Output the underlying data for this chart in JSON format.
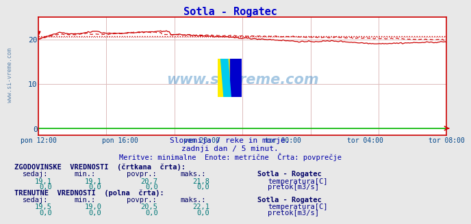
{
  "title": "Sotla - Rogatec",
  "subtitle1": "Slovenija / reke in morje.",
  "subtitle2": "zadnji dan / 5 minut.",
  "subtitle3": "Meritve: minimalne  Enote: metrične  Črta: povprečje",
  "watermark": "www.si-vreme.com",
  "x_labels": [
    "pon 12:00",
    "pon 16:00",
    "pon 20:00",
    "tor 00:00",
    "tor 04:00",
    "tor 08:00"
  ],
  "ylim": [
    -1.5,
    25
  ],
  "yticks": [
    0,
    10,
    20
  ],
  "bg_color": "#e8e8e8",
  "plot_bg": "#ffffff",
  "grid_color": "#ddbbbb",
  "axis_color": "#cc0000",
  "temp_color": "#cc0000",
  "pretok_color": "#00bb00",
  "title_color": "#0000cc",
  "subtitle_color": "#0000aa",
  "text_color": "#000088",
  "label_color": "#004488",
  "table_bold_color": "#000066",
  "table_value_color": "#007777",
  "n_points": 288,
  "temp_avg_hist": 20.7,
  "temp_avg_curr": 20.5,
  "temp_min_hist": 19.1,
  "temp_min_curr": 19.0,
  "temp_max_hist": 21.8,
  "temp_max_curr": 22.1,
  "temp_sedaj_hist": 19.1,
  "temp_sedaj_curr": 19.5,
  "pretok_sedaj_hist": 0.0,
  "pretok_min_hist": 0.0,
  "pretok_avg_hist": 0.0,
  "pretok_max_hist": 0.0,
  "pretok_sedaj_curr": 0.0,
  "pretok_min_curr": 0.0,
  "pretok_avg_curr": 0.0,
  "pretok_max_curr": 0.0
}
